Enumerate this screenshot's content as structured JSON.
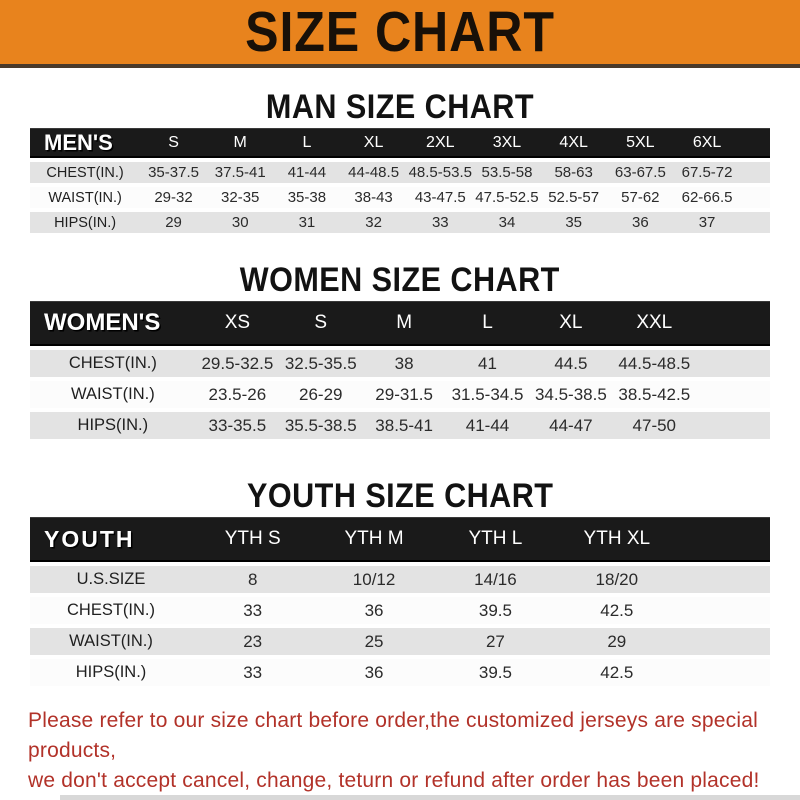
{
  "banner": {
    "title": "SIZE CHART",
    "bg_color": "#e8831d",
    "title_color": "#181008"
  },
  "sections": [
    {
      "heading": "MAN SIZE CHART",
      "table": {
        "label": "MEN'S",
        "columns": [
          "S",
          "M",
          "L",
          "XL",
          "2XL",
          "3XL",
          "4XL",
          "5XL",
          "6XL"
        ],
        "rows": [
          {
            "label": "CHEST(IN.)",
            "values": [
              "35-37.5",
              "37.5-41",
              "41-44",
              "44-48.5",
              "48.5-53.5",
              "53.5-58",
              "58-63",
              "63-67.5",
              "67.5-72"
            ]
          },
          {
            "label": "WAIST(IN.)",
            "values": [
              "29-32",
              "32-35",
              "35-38",
              "38-43",
              "43-47.5",
              "47.5-52.5",
              "52.5-57",
              "57-62",
              "62-66.5"
            ]
          },
          {
            "label": "HIPS(IN.)",
            "values": [
              "29",
              "30",
              "31",
              "32",
              "33",
              "34",
              "35",
              "36",
              "37"
            ]
          }
        ]
      }
    },
    {
      "heading": "WOMEN SIZE CHART",
      "table": {
        "label": "WOMEN'S",
        "columns": [
          "XS",
          "S",
          "M",
          "L",
          "XL",
          "XXL"
        ],
        "rows": [
          {
            "label": "CHEST(IN.)",
            "values": [
              "29.5-32.5",
              "32.5-35.5",
              "38",
              "41",
              "44.5",
              "44.5-48.5"
            ]
          },
          {
            "label": "WAIST(IN.)",
            "values": [
              "23.5-26",
              "26-29",
              "29-31.5",
              "31.5-34.5",
              "34.5-38.5",
              "38.5-42.5"
            ]
          },
          {
            "label": "HIPS(IN.)",
            "values": [
              "33-35.5",
              "35.5-38.5",
              "38.5-41",
              "41-44",
              "44-47",
              "47-50"
            ]
          }
        ]
      }
    },
    {
      "heading": "YOUTH SIZE CHART",
      "table": {
        "label": "YOUTH",
        "columns": [
          "YTH S",
          "YTH M",
          "YTH L",
          "YTH XL"
        ],
        "rows": [
          {
            "label": "U.S.SIZE",
            "values": [
              "8",
              "10/12",
              "14/16",
              "18/20"
            ]
          },
          {
            "label": "CHEST(IN.)",
            "values": [
              "33",
              "36",
              "39.5",
              "42.5"
            ]
          },
          {
            "label": "WAIST(IN.)",
            "values": [
              "23",
              "25",
              "27",
              "29"
            ]
          },
          {
            "label": "HIPS(IN.)",
            "values": [
              "33",
              "36",
              "39.5",
              "42.5"
            ]
          }
        ]
      }
    }
  ],
  "footer": {
    "line1": "Please refer to our size chart before order,the customized jerseys are special products,",
    "line2": "we don't accept cancel, change, teturn or refund after order has been placed!",
    "text_color": "#b23229"
  },
  "colors": {
    "header_row_bg": "#1a1a1a",
    "stripe_row_bg": "#e3e3e3"
  }
}
